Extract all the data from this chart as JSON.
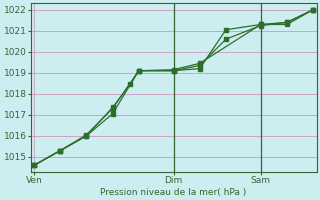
{
  "title": "Pression niveau de la mer( hPa )",
  "bg_color": "#cceef0",
  "grid_color_major": "#cc99bb",
  "grid_color_minor": "#ddccdd",
  "line_color": "#2d6e2d",
  "ylim": [
    1014.3,
    1022.3
  ],
  "yticks": [
    1015,
    1016,
    1017,
    1018,
    1019,
    1020,
    1021,
    1022
  ],
  "xlim": [
    -0.2,
    16.2
  ],
  "xtick_labels": [
    "Ven",
    "",
    "Dim",
    "",
    "Sam",
    ""
  ],
  "xtick_positions": [
    0,
    5.5,
    8,
    11,
    13,
    16
  ],
  "vline_positions": [
    8,
    13
  ],
  "series1_x": [
    0,
    1.5,
    3,
    4.5,
    6,
    8,
    9.5,
    11,
    13,
    14.5,
    16
  ],
  "series1_y": [
    1014.6,
    1015.3,
    1016.0,
    1017.05,
    1019.1,
    1019.1,
    1019.35,
    1020.6,
    1021.25,
    1021.4,
    1022.0
  ],
  "series2_x": [
    0,
    1.5,
    3,
    4.5,
    5.5,
    6,
    8,
    9.5,
    11,
    13,
    14.5,
    16
  ],
  "series2_y": [
    1014.6,
    1015.3,
    1016.0,
    1017.35,
    1018.45,
    1019.1,
    1019.1,
    1019.2,
    1021.05,
    1021.3,
    1021.4,
    1022.0
  ],
  "series3_x": [
    0,
    1.5,
    3,
    4.5,
    6,
    8,
    9.5,
    13,
    14.5,
    16
  ],
  "series3_y": [
    1014.6,
    1015.3,
    1016.05,
    1017.3,
    1019.1,
    1019.15,
    1019.45,
    1021.3,
    1021.3,
    1022.0
  ]
}
